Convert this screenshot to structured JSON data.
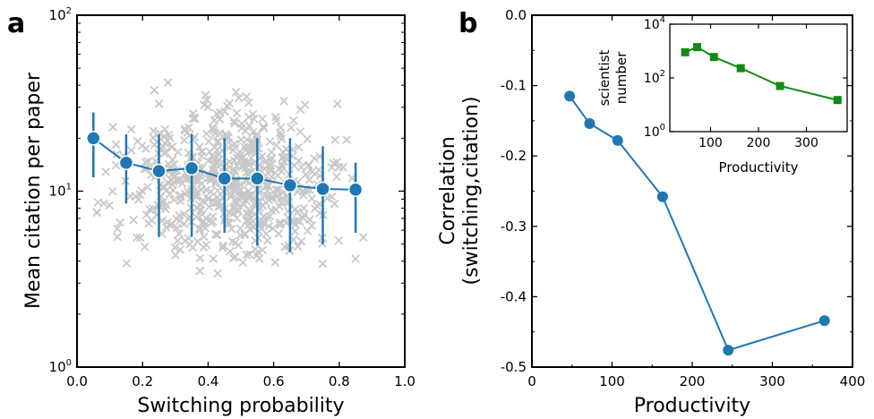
{
  "chart_data": [
    {
      "panel": "a",
      "type": "scatter",
      "xlabel": "Switching probability",
      "ylabel": "Mean citation per paper",
      "xlim": [
        0.0,
        1.0
      ],
      "ylim": [
        1,
        100
      ],
      "yscale": "log",
      "xticks": [
        "0.0",
        "0.2",
        "0.4",
        "0.6",
        "0.8",
        "1.0"
      ],
      "yticks": [
        {
          "base": "10",
          "exp": "0"
        },
        {
          "base": "10",
          "exp": "1"
        },
        {
          "base": "10",
          "exp": "2"
        }
      ],
      "scatter_color": "#c8c8c8",
      "series_color": "#1f77b4",
      "binned_series": {
        "x": [
          0.05,
          0.15,
          0.25,
          0.35,
          0.45,
          0.55,
          0.65,
          0.75,
          0.85
        ],
        "y": [
          20.0,
          14.5,
          13.0,
          13.5,
          11.8,
          11.8,
          10.8,
          10.3,
          10.2
        ],
        "err_low": [
          12.0,
          8.5,
          5.5,
          5.5,
          5.8,
          4.9,
          4.5,
          5.0,
          5.8
        ],
        "err_high": [
          28.0,
          21.0,
          21.0,
          21.0,
          20.0,
          20.0,
          20.0,
          18.0,
          14.5
        ]
      }
    },
    {
      "panel": "b",
      "type": "line",
      "xlabel": "Productivity",
      "ylabel_line1": "Correlation",
      "ylabel_line2": "(switching,citation)",
      "xlim": [
        0,
        400
      ],
      "ylim": [
        -0.5,
        0.0
      ],
      "xticks": [
        "0",
        "100",
        "200",
        "300",
        "400"
      ],
      "yticks": [
        "0.0",
        "-0.1",
        "-0.2",
        "-0.3",
        "-0.4",
        "-0.5"
      ],
      "color": "#1f77b4",
      "x": [
        47,
        72,
        107,
        163,
        245,
        365
      ],
      "y": [
        -0.115,
        -0.154,
        -0.178,
        -0.258,
        -0.476,
        -0.434
      ]
    },
    {
      "panel": "b-inset",
      "type": "line",
      "xlabel": "Productivity",
      "ylabel_line1": "scientist",
      "ylabel_line2": "number",
      "xlim": [
        15,
        385
      ],
      "ylim": [
        1,
        10000
      ],
      "yscale": "log",
      "xticks": [
        "100",
        "200",
        "300"
      ],
      "yticks": [
        {
          "base": "10",
          "exp": "0"
        },
        {
          "base": "10",
          "exp": "2"
        },
        {
          "base": "10",
          "exp": "4"
        }
      ],
      "color": "#138a13",
      "x": [
        47,
        72,
        107,
        163,
        245,
        365
      ],
      "y": [
        900,
        1400,
        600,
        230,
        50,
        15
      ]
    }
  ]
}
